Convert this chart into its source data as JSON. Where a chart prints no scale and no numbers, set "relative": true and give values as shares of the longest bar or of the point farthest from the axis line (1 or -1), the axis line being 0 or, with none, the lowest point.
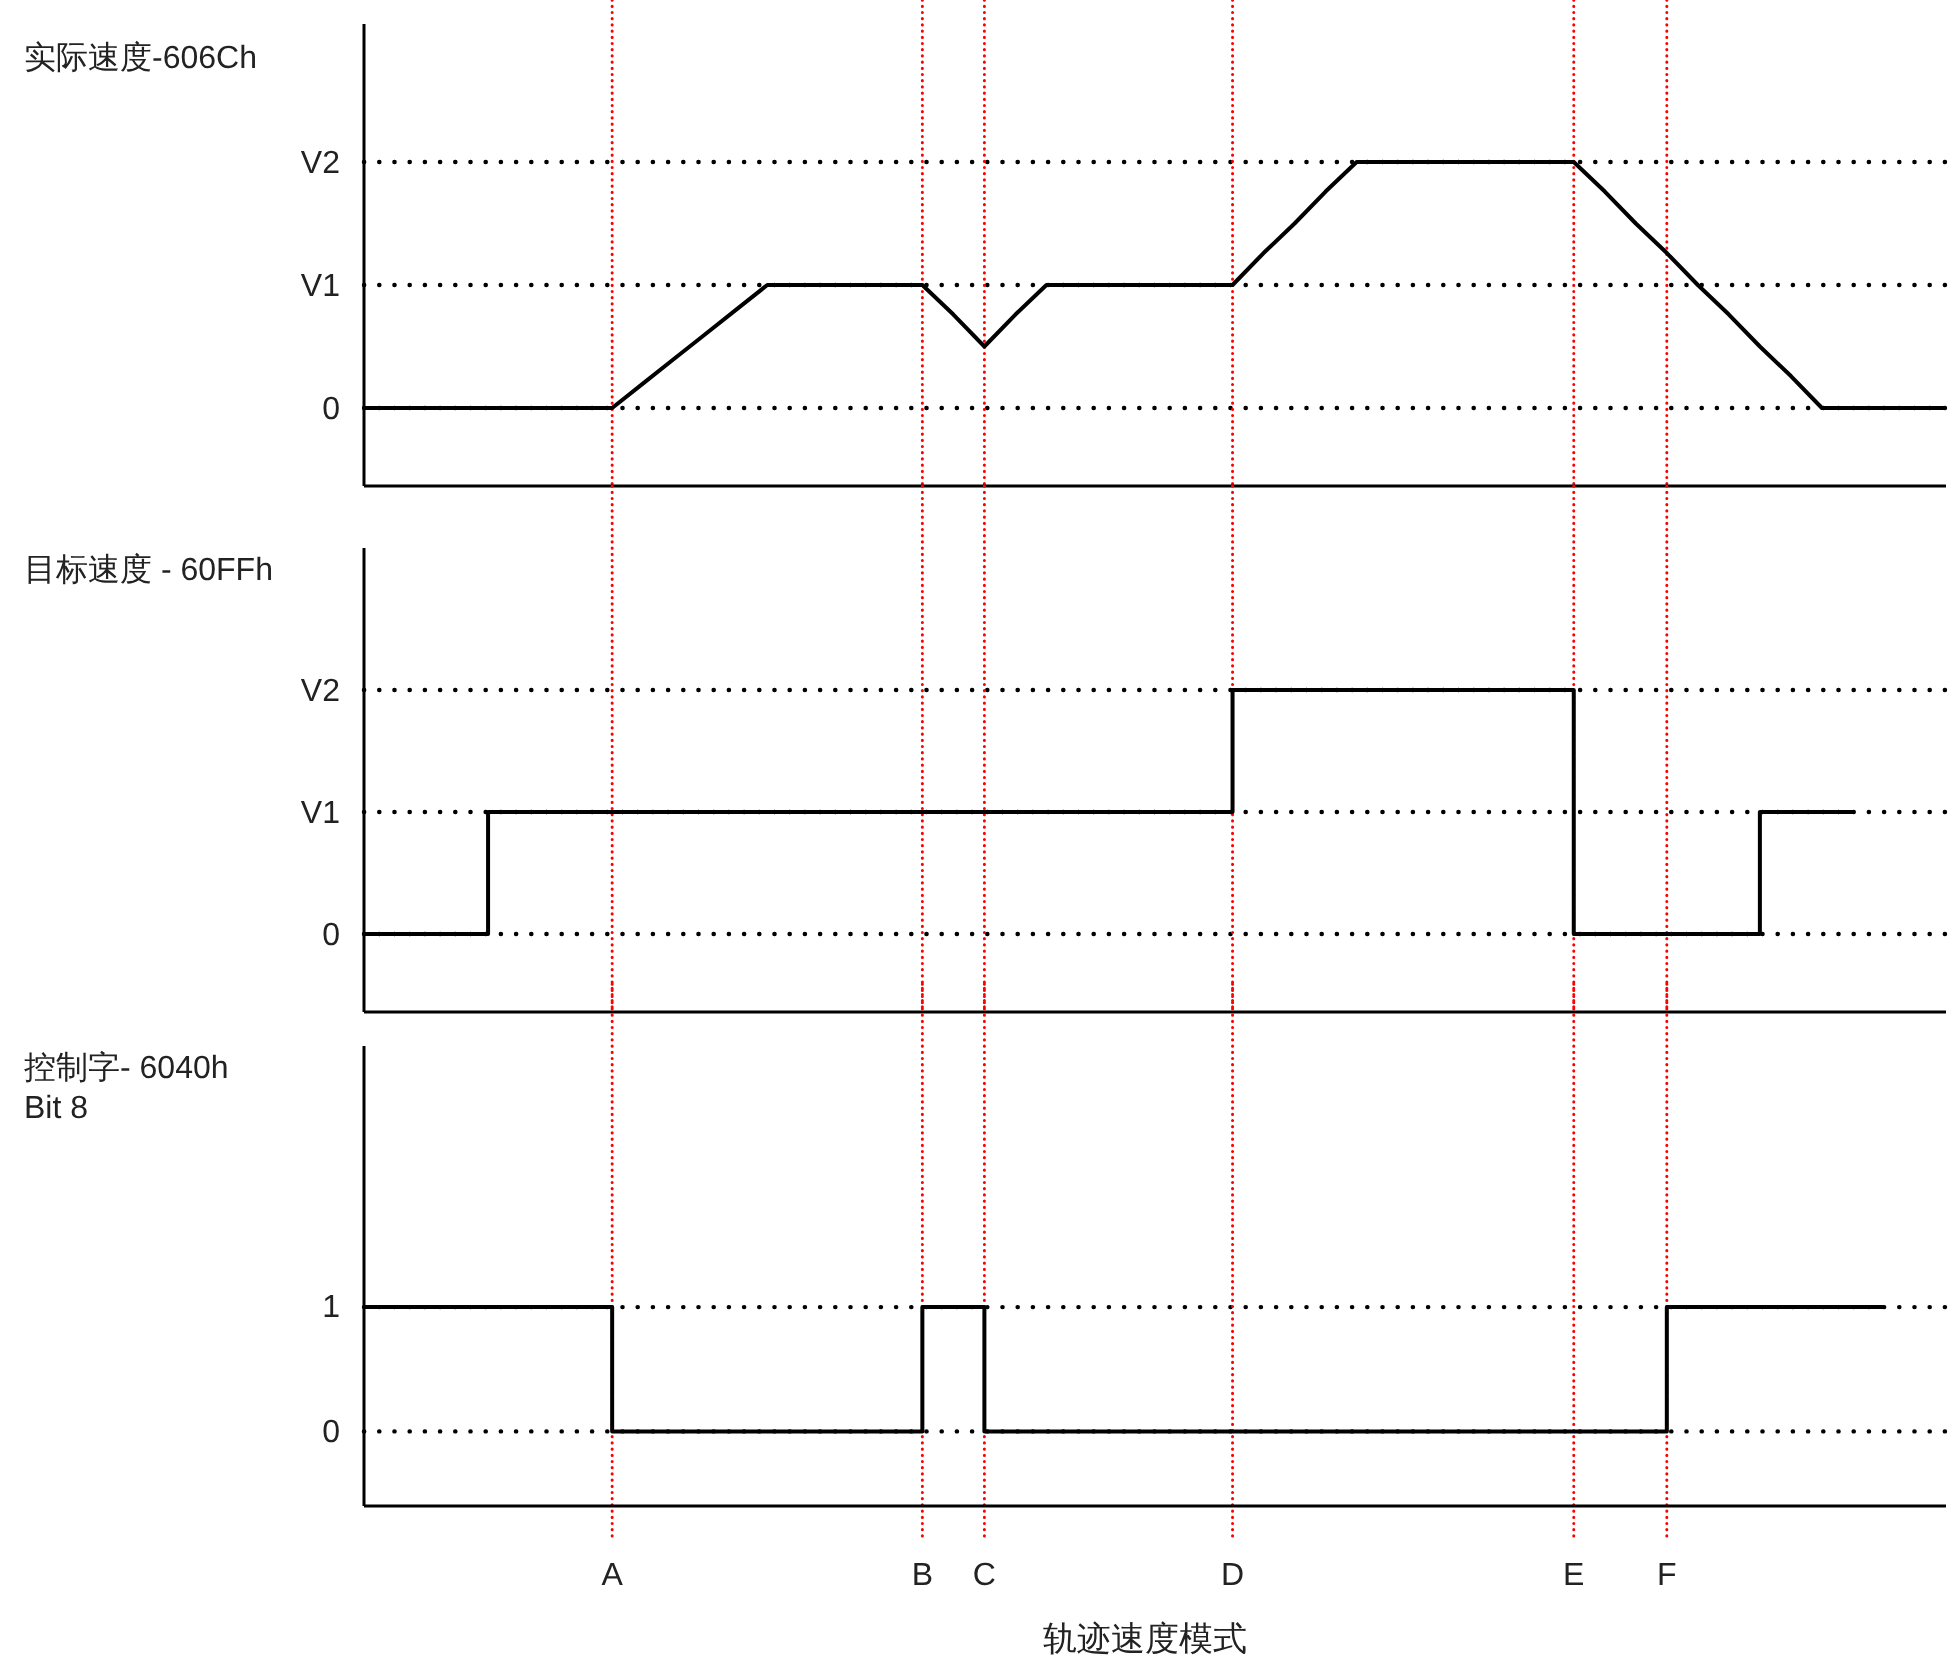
{
  "chart_data": [
    {
      "type": "line",
      "title": "实际速度-606Ch",
      "relative": true,
      "categories": [
        null,
        null,
        null,
        null,
        null,
        null,
        null,
        null,
        "A",
        null,
        null,
        null,
        null,
        null,
        null,
        null,
        null,
        null,
        "B",
        null,
        "C",
        null,
        null,
        null,
        null,
        null,
        null,
        null,
        "D",
        null,
        null,
        null,
        null,
        null,
        null,
        null,
        null,
        null,
        null,
        "E",
        null,
        null,
        "F",
        null,
        null,
        null,
        null,
        null,
        null,
        null,
        null,
        null
      ],
      "series": [
        {
          "color": "#000000",
          "values": [
            0,
            0,
            0,
            0,
            0,
            0,
            0,
            0,
            0,
            0.1,
            0.2,
            0.3,
            0.4,
            0.5,
            0.5,
            0.5,
            0.5,
            0.5,
            0.5,
            0.38,
            0.25,
            0.38,
            0.5,
            0.5,
            0.5,
            0.5,
            0.5,
            0.5,
            0.5,
            0.63,
            0.75,
            0.88,
            1,
            1,
            1,
            1,
            1,
            1,
            1,
            1,
            0.88,
            0.75,
            0.63,
            0.5,
            0.38,
            0.25,
            0.13,
            0,
            0,
            0,
            0,
            0
          ]
        }
      ],
      "tick_labels": false,
      "line_style": "solid",
      "marker": "none",
      "ref_lines": [
        {
          "axis": "y",
          "value": 0,
          "label": "0",
          "color": "#000000",
          "line_style": "dotted"
        },
        {
          "axis": "y",
          "value": 0.5,
          "label": "V1",
          "color": "#000000",
          "line_style": "dotted"
        },
        {
          "axis": "y",
          "value": 1,
          "label": "V2",
          "color": "#000000",
          "line_style": "dotted"
        },
        {
          "axis": "x",
          "value": "A",
          "color": "#ff0000",
          "line_style": "dotted"
        },
        {
          "axis": "x",
          "value": "B",
          "color": "#ff0000",
          "line_style": "dotted"
        },
        {
          "axis": "x",
          "value": "C",
          "color": "#ff0000",
          "line_style": "dotted"
        },
        {
          "axis": "x",
          "value": "D",
          "color": "#ff0000",
          "line_style": "dotted"
        },
        {
          "axis": "x",
          "value": "E",
          "color": "#ff0000",
          "line_style": "dotted"
        },
        {
          "axis": "x",
          "value": "F",
          "color": "#ff0000",
          "line_style": "dotted"
        }
      ]
    },
    {
      "type": "step",
      "title": "目标速度 - 60FFh",
      "relative": true,
      "categories": [
        null,
        null,
        null,
        null,
        null,
        null,
        null,
        null,
        "A",
        null,
        null,
        null,
        null,
        null,
        null,
        null,
        null,
        null,
        "B",
        null,
        "C",
        null,
        null,
        null,
        null,
        null,
        null,
        null,
        "D",
        null,
        null,
        null,
        null,
        null,
        null,
        null,
        null,
        null,
        null,
        "E",
        null,
        null,
        "F",
        null,
        null,
        null,
        null,
        null,
        null,
        null,
        null,
        null
      ],
      "series": [
        {
          "color": "#000000",
          "values": [
            0,
            0,
            0,
            0,
            0.5,
            0.5,
            0.5,
            0.5,
            0.5,
            0.5,
            0.5,
            0.5,
            0.5,
            0.5,
            0.5,
            0.5,
            0.5,
            0.5,
            0.5,
            0.5,
            0.5,
            0.5,
            0.5,
            0.5,
            0.5,
            0.5,
            0.5,
            0.5,
            1,
            1,
            1,
            1,
            1,
            1,
            1,
            1,
            1,
            1,
            1,
            0,
            0,
            0,
            0,
            0,
            0,
            0.5,
            0.5,
            0.5,
            0.5,
            null,
            null,
            null
          ]
        }
      ],
      "tick_labels": false,
      "line_style": "solid",
      "marker": "none",
      "ref_lines": [
        {
          "axis": "y",
          "value": 0,
          "label": "0",
          "color": "#000000",
          "line_style": "dotted"
        },
        {
          "axis": "y",
          "value": 0.5,
          "label": "V1",
          "color": "#000000",
          "line_style": "dotted"
        },
        {
          "axis": "y",
          "value": 1,
          "label": "V2",
          "color": "#000000",
          "line_style": "dotted"
        },
        {
          "axis": "x",
          "value": "A",
          "color": "#ff0000",
          "line_style": "dotted"
        },
        {
          "axis": "x",
          "value": "B",
          "color": "#ff0000",
          "line_style": "dotted"
        },
        {
          "axis": "x",
          "value": "C",
          "color": "#ff0000",
          "line_style": "dotted"
        },
        {
          "axis": "x",
          "value": "D",
          "color": "#ff0000",
          "line_style": "dotted"
        },
        {
          "axis": "x",
          "value": "E",
          "color": "#ff0000",
          "line_style": "dotted"
        },
        {
          "axis": "x",
          "value": "F",
          "color": "#ff0000",
          "line_style": "dotted"
        }
      ]
    },
    {
      "type": "step",
      "title": "控制字- 6040h\nBit 8",
      "xlabel": "轨迹速度模式",
      "categories": [
        null,
        null,
        null,
        null,
        null,
        null,
        null,
        null,
        "A",
        null,
        null,
        null,
        null,
        null,
        null,
        null,
        null,
        null,
        "B",
        null,
        "C",
        null,
        null,
        null,
        null,
        null,
        null,
        null,
        "D",
        null,
        null,
        null,
        null,
        null,
        null,
        null,
        null,
        null,
        null,
        "E",
        null,
        null,
        "F",
        null,
        null,
        null,
        null,
        null,
        null,
        null,
        null,
        null
      ],
      "series": [
        {
          "color": "#000000",
          "values": [
            1,
            1,
            1,
            1,
            1,
            1,
            1,
            1,
            0,
            0,
            0,
            0,
            0,
            0,
            0,
            0,
            0,
            0,
            1,
            1,
            0,
            0,
            0,
            0,
            0,
            0,
            0,
            0,
            0,
            0,
            0,
            0,
            0,
            0,
            0,
            0,
            0,
            0,
            0,
            0,
            0,
            0,
            1,
            1,
            1,
            1,
            1,
            1,
            1,
            1,
            null,
            null
          ]
        }
      ],
      "ylim": [
        -0.6,
        3.1
      ],
      "yticks": [
        0,
        1
      ],
      "grid": "y",
      "line_style": "solid",
      "marker": "none",
      "ref_lines": [
        {
          "axis": "x",
          "value": "A",
          "color": "#ff0000",
          "line_style": "dotted"
        },
        {
          "axis": "x",
          "value": "B",
          "color": "#ff0000",
          "line_style": "dotted"
        },
        {
          "axis": "x",
          "value": "C",
          "color": "#ff0000",
          "line_style": "dotted"
        },
        {
          "axis": "x",
          "value": "D",
          "color": "#ff0000",
          "line_style": "dotted"
        },
        {
          "axis": "x",
          "value": "E",
          "color": "#ff0000",
          "line_style": "dotted"
        },
        {
          "axis": "x",
          "value": "F",
          "color": "#ff0000",
          "line_style": "dotted"
        }
      ]
    }
  ]
}
